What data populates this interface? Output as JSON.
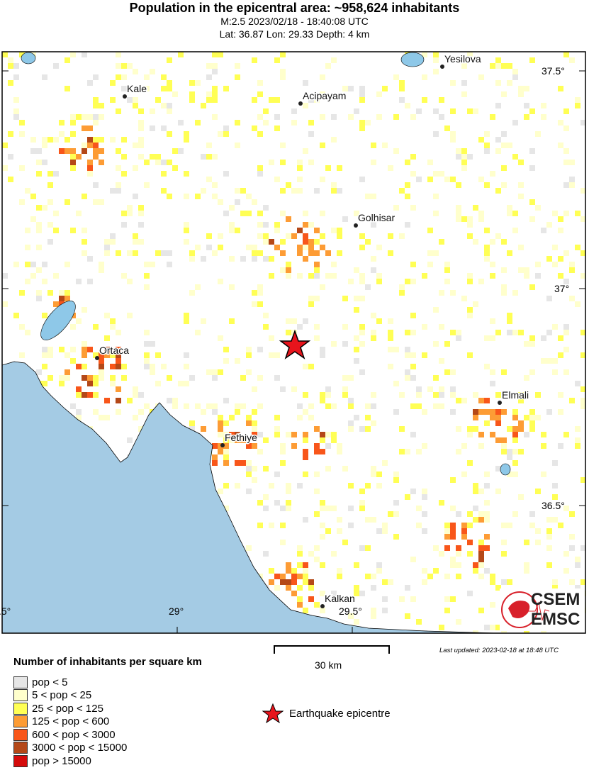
{
  "header": {
    "title": "Population in the epicentral area: ~958,624 inhabitants",
    "magnitude_time": "M:2.5 2023/02/18 - 18:40:08 UTC",
    "location": "Lat: 36.87 Lon: 29.33 Depth: 4 km"
  },
  "map": {
    "lon_labels": [
      ".5°",
      "29°",
      "29.5°"
    ],
    "lat_labels": [
      "37.5°",
      "37°",
      "36.5°"
    ],
    "cities": [
      {
        "name": "Kale"
      },
      {
        "name": "Acipayam"
      },
      {
        "name": "Yesilova"
      },
      {
        "name": "Golhisar"
      },
      {
        "name": "Ortaca"
      },
      {
        "name": "Fethiye"
      },
      {
        "name": "Elmali"
      },
      {
        "name": "Kalkan"
      }
    ],
    "sea_color": "#a4cbe4",
    "lake_color": "#8ec8e8",
    "epicenter_color": "#e8141c"
  },
  "legend": {
    "title": "Number of inhabitants per square km",
    "items": [
      {
        "label": "pop < 5",
        "color": "#e6e6e6"
      },
      {
        "label": "5 < pop < 25",
        "color": "#ffffcc"
      },
      {
        "label": "25 < pop < 125",
        "color": "#ffff55"
      },
      {
        "label": "125 < pop < 600",
        "color": "#fd9c35"
      },
      {
        "label": "600 < pop < 3000",
        "color": "#f8561a"
      },
      {
        "label": "3000 < pop < 15000",
        "color": "#b44818"
      },
      {
        "label": "pop > 15000",
        "color": "#d40b0b"
      }
    ],
    "epicentre_label": "Earthquake epicentre"
  },
  "scale": {
    "label": "30 km"
  },
  "footer": {
    "last_updated": "Last updated: 2023-02-18 at 18:48 UTC"
  },
  "logo": {
    "top": "CSEM",
    "bottom": "EMSC"
  }
}
